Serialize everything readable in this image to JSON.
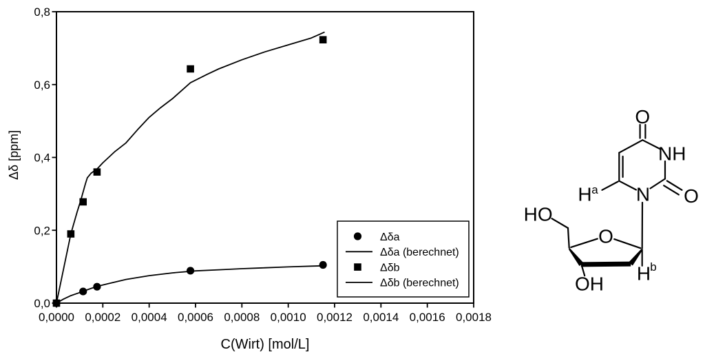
{
  "figure": {
    "background": "#ffffff"
  },
  "chart_data": {
    "type": "scatter",
    "title": "",
    "xlabel": "C(Wirt) [mol/L]",
    "ylabel": "Δδ [ppm]",
    "xlim": [
      0,
      0.0018
    ],
    "ylim": [
      0,
      0.8
    ],
    "grid": false,
    "x_ticks": [
      {
        "v": 0,
        "label": "0,0000"
      },
      {
        "v": 0.0002,
        "label": "0,0002"
      },
      {
        "v": 0.0004,
        "label": "0,0004"
      },
      {
        "v": 0.0006,
        "label": "0,0006"
      },
      {
        "v": 0.0008,
        "label": "0,0008"
      },
      {
        "v": 0.001,
        "label": "0,0010"
      },
      {
        "v": 0.0012,
        "label": "0,0012"
      },
      {
        "v": 0.0014,
        "label": "0,0014"
      },
      {
        "v": 0.0016,
        "label": "0,0016"
      },
      {
        "v": 0.0018,
        "label": "0,0018"
      }
    ],
    "y_ticks": [
      {
        "v": 0,
        "label": "0,0"
      },
      {
        "v": 0.2,
        "label": "0,2"
      },
      {
        "v": 0.4,
        "label": "0,4"
      },
      {
        "v": 0.6,
        "label": "0,6"
      },
      {
        "v": 0.8,
        "label": "0,8"
      }
    ],
    "series": [
      {
        "id": "dda",
        "name": "Δδa",
        "kind": "scatter",
        "marker": "circle",
        "points": [
          [
            0,
            0
          ],
          [
            0.000115,
            0.032
          ],
          [
            0.000175,
            0.045
          ],
          [
            0.000578,
            0.089
          ],
          [
            0.00115,
            0.105
          ]
        ]
      },
      {
        "id": "dda-fit",
        "name": "Δδa (berechnet)",
        "kind": "line",
        "points": [
          [
            0,
            0
          ],
          [
            3e-05,
            0.011
          ],
          [
            6e-05,
            0.02
          ],
          [
            0.0001,
            0.029
          ],
          [
            0.000135,
            0.037
          ],
          [
            0.000175,
            0.046
          ],
          [
            0.00022,
            0.053
          ],
          [
            0.0003,
            0.065
          ],
          [
            0.0004,
            0.0755
          ],
          [
            0.0005,
            0.083
          ],
          [
            0.0006,
            0.0885
          ],
          [
            0.0007,
            0.0915
          ],
          [
            0.0008,
            0.0945
          ],
          [
            0.0009,
            0.097
          ],
          [
            0.001,
            0.0995
          ],
          [
            0.0011,
            0.1015
          ],
          [
            0.00115,
            0.1025
          ]
        ]
      },
      {
        "id": "ddb",
        "name": "Δδb",
        "kind": "scatter",
        "marker": "square",
        "points": [
          [
            0,
            0
          ],
          [
            6.2e-05,
            0.19
          ],
          [
            0.000115,
            0.278
          ],
          [
            0.000175,
            0.36
          ],
          [
            0.000578,
            0.643
          ],
          [
            0.00115,
            0.723
          ]
        ]
      },
      {
        "id": "ddb-fit",
        "name": "Δδb (berechnet)",
        "kind": "line",
        "points": [
          [
            0,
            0
          ],
          [
            3e-05,
            0.092
          ],
          [
            6.2e-05,
            0.19
          ],
          [
            9e-05,
            0.252
          ],
          [
            0.000105,
            0.282
          ],
          [
            0.000115,
            0.305
          ],
          [
            0.000125,
            0.328
          ],
          [
            0.000133,
            0.344
          ],
          [
            0.00015,
            0.357
          ],
          [
            0.000175,
            0.368
          ],
          [
            0.0002,
            0.385
          ],
          [
            0.00025,
            0.415
          ],
          [
            0.0003,
            0.44
          ],
          [
            0.00035,
            0.476
          ],
          [
            0.0004,
            0.51
          ],
          [
            0.00045,
            0.537
          ],
          [
            0.0005,
            0.561
          ],
          [
            0.000578,
            0.605
          ],
          [
            0.00065,
            0.628
          ],
          [
            0.0007,
            0.643
          ],
          [
            0.0008,
            0.668
          ],
          [
            0.0009,
            0.69
          ],
          [
            0.001,
            0.709
          ],
          [
            0.0011,
            0.728
          ],
          [
            0.001157,
            0.744
          ]
        ]
      }
    ],
    "legend": {
      "position": "lower-right-inside",
      "border": true,
      "entries": [
        "Δδa",
        "Δδa (berechnet)",
        "Δδb",
        "Δδb (berechnet)"
      ]
    },
    "colors": {
      "foreground": "#000000",
      "background": "#ffffff"
    }
  },
  "structure": {
    "labels": {
      "o_top": "O",
      "nh": "NH",
      "o_right": "O",
      "n1": "N",
      "ha_h": "H",
      "ha_sup": "a",
      "hb_h": "H",
      "hb_sup": "b",
      "ring_o": "O",
      "ho": "HO",
      "oh": "OH"
    }
  }
}
